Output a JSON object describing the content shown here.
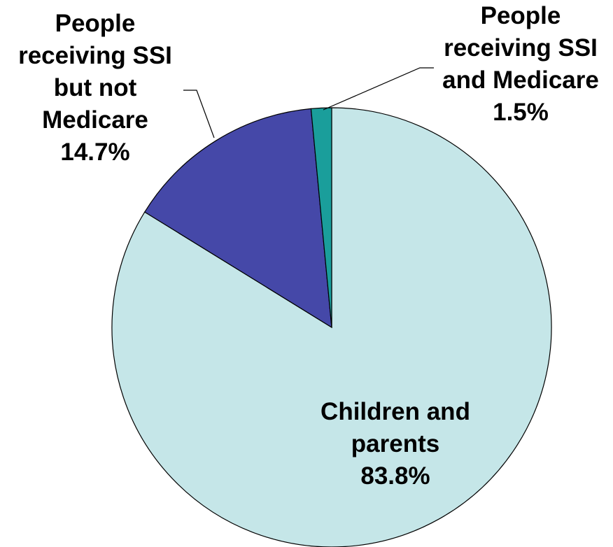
{
  "chart_data": {
    "type": "pie",
    "title": "",
    "slices": [
      {
        "label_lines": [
          "Children and",
          "parents"
        ],
        "value": 83.8,
        "value_label": "83.8%",
        "color": "#c5e6e8"
      },
      {
        "label_lines": [
          "People",
          "receiving SSI",
          "but not",
          "Medicare"
        ],
        "value": 14.7,
        "value_label": "14.7%",
        "color": "#4548a8"
      },
      {
        "label_lines": [
          "People",
          "receiving SSI",
          "and Medicare"
        ],
        "value": 1.5,
        "value_label": "1.5%",
        "color": "#1a9e9b"
      }
    ],
    "start_angle_deg": 0,
    "direction": "clockwise",
    "legend": "none"
  }
}
